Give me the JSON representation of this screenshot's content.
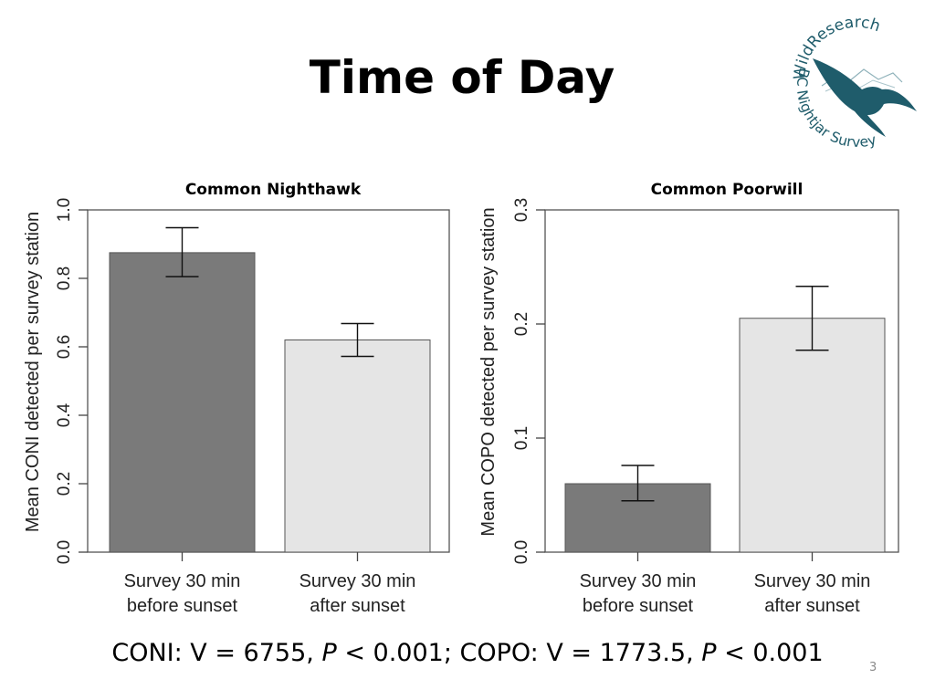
{
  "slide": {
    "title": "Time of Day",
    "number": "3",
    "stats": {
      "coni": "CONI: V = 6755, ",
      "coni_p_label": "P",
      "coni_p_value": " < 0.001; ",
      "copo": "COPO: V = 1773.5, ",
      "copo_p_label": "P",
      "copo_p_value": " < 0.001"
    }
  },
  "logo": {
    "text_top": "WildResearch",
    "text_bottom": "BC Nightjar Survey",
    "color": "#1f5c6b"
  },
  "chart_data": [
    {
      "type": "bar",
      "title": "Common Nighthawk",
      "ylabel": "Mean CONI detected per survey station",
      "xlabel": "",
      "categories": [
        "Survey 30 min\nbefore sunset",
        "Survey 30 min\nafter sunset"
      ],
      "category_lines": [
        [
          "Survey 30 min",
          "before sunset"
        ],
        [
          "Survey 30 min",
          "after sunset"
        ]
      ],
      "values": [
        0.875,
        0.62
      ],
      "error_low": [
        0.805,
        0.572
      ],
      "error_high": [
        0.948,
        0.668
      ],
      "bar_colors": [
        "#7a7a7a",
        "#e5e5e5"
      ],
      "ylim": [
        0,
        1.0
      ],
      "yticks": [
        "0.0",
        "0.2",
        "0.4",
        "0.6",
        "0.8",
        "1.0"
      ],
      "grid": false
    },
    {
      "type": "bar",
      "title": "Common Poorwill",
      "ylabel": "Mean COPO detected per survey station",
      "xlabel": "",
      "categories": [
        "Survey 30 min\nbefore sunset",
        "Survey 30 min\nafter sunset"
      ],
      "category_lines": [
        [
          "Survey 30 min",
          "before sunset"
        ],
        [
          "Survey 30 min",
          "after sunset"
        ]
      ],
      "values": [
        0.06,
        0.205
      ],
      "error_low": [
        0.045,
        0.177
      ],
      "error_high": [
        0.076,
        0.233
      ],
      "bar_colors": [
        "#7a7a7a",
        "#e5e5e5"
      ],
      "ylim": [
        0,
        0.3
      ],
      "yticks": [
        "0.0",
        "0.1",
        "0.2",
        "0.3"
      ],
      "grid": false
    }
  ]
}
